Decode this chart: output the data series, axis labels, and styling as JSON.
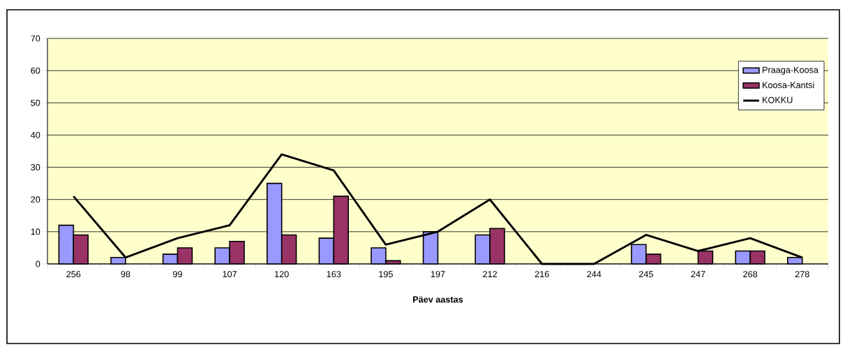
{
  "chart_data": {
    "type": "bar",
    "xlabel": "Päev aastas",
    "categories": [
      "256",
      "98",
      "99",
      "107",
      "120",
      "163",
      "195",
      "197",
      "212",
      "216",
      "244",
      "245",
      "247",
      "268",
      "278"
    ],
    "series": [
      {
        "name": "Praaga-Koosa",
        "color": "#9999ff",
        "values": [
          12,
          2,
          3,
          5,
          25,
          8,
          5,
          10,
          9,
          null,
          null,
          6,
          null,
          4,
          2
        ]
      },
      {
        "name": "Koosa-Kantsi",
        "color": "#993366",
        "values": [
          9,
          null,
          5,
          7,
          9,
          21,
          1,
          null,
          11,
          null,
          null,
          3,
          4,
          4,
          null
        ]
      },
      {
        "name": "KOKKU",
        "type": "line",
        "color": "#000000",
        "values": [
          21,
          2,
          8,
          12,
          34,
          29,
          6,
          10,
          20,
          0,
          0,
          9,
          4,
          8,
          2
        ]
      }
    ],
    "ylim": [
      0,
      70
    ],
    "yticks": [
      0,
      10,
      20,
      30,
      40,
      50,
      60,
      70
    ],
    "grid": "y",
    "legend": "top right"
  }
}
